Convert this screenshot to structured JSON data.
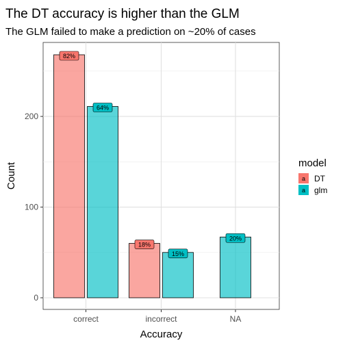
{
  "chart_data": {
    "type": "bar",
    "title": "The DT accuracy is higher than the GLM",
    "subtitle": "The GLM failed to make a prediction on ~20% of cases",
    "xlabel": "Accuracy",
    "ylabel": "Count",
    "categories": [
      "correct",
      "incorrect",
      "NA"
    ],
    "ylim": [
      0,
      285
    ],
    "yticks": [
      0,
      100,
      200
    ],
    "grid": true,
    "legend": {
      "title": "model",
      "position": "right"
    },
    "series": [
      {
        "name": "DT",
        "color": "#F8766D",
        "values": [
          268,
          60,
          null
        ],
        "labels": [
          "82%",
          "18%",
          null
        ]
      },
      {
        "name": "glm",
        "color": "#00BFC4",
        "values": [
          211,
          50,
          67
        ],
        "labels": [
          "64%",
          "15%",
          "20%"
        ]
      }
    ],
    "legend_key_glyph": "a"
  }
}
